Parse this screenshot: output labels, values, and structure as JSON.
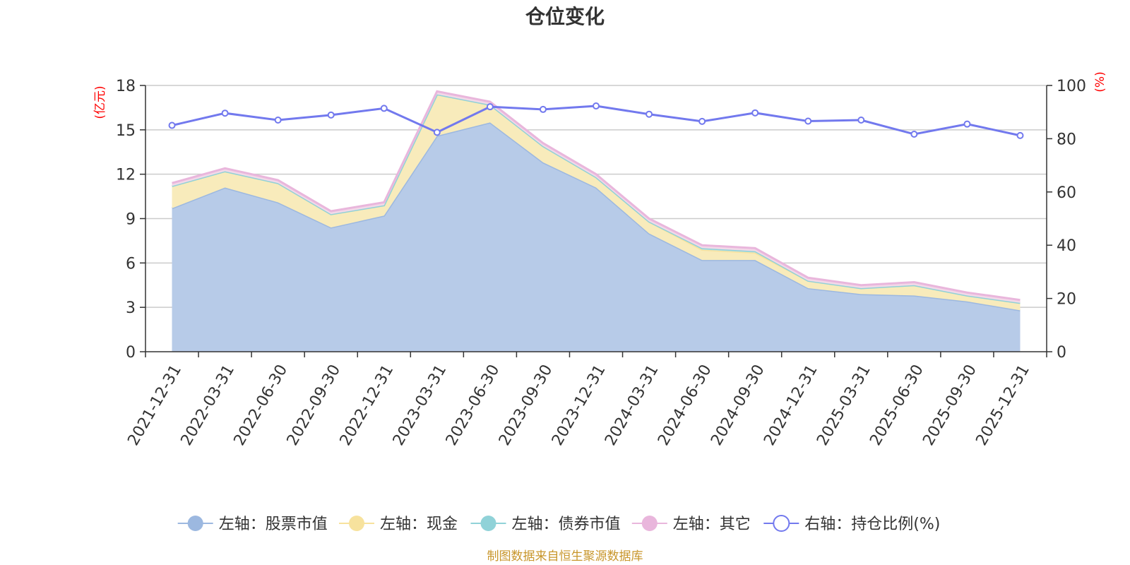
{
  "chart_data": {
    "type": "area",
    "title": "仓位变化",
    "categories": [
      "2021-12-31",
      "2022-03-31",
      "2022-06-30",
      "2022-09-30",
      "2022-12-31",
      "2023-03-31",
      "2023-06-30",
      "2023-09-30",
      "2023-12-31",
      "2024-03-31",
      "2024-06-30",
      "2024-09-30",
      "2024-12-31",
      "2025-03-31",
      "2025-06-30",
      "2025-09-30",
      "2025-12-31"
    ],
    "left_axis": {
      "unit": "(亿元)",
      "min": 0,
      "max": 18,
      "ticks": [
        0,
        3,
        6,
        9,
        12,
        15,
        18
      ]
    },
    "right_axis": {
      "unit": "(%)",
      "min": 0,
      "max": 100,
      "ticks": [
        0,
        20,
        40,
        60,
        80,
        100
      ]
    },
    "series": [
      {
        "name": "左轴：股票市值",
        "axis": "left",
        "stack": true,
        "color": "#9cb8e0",
        "fill": "#b7cbe8",
        "values": [
          9.7,
          11.1,
          10.1,
          8.4,
          9.2,
          14.6,
          15.5,
          12.8,
          11.1,
          8.0,
          6.2,
          6.2,
          4.3,
          3.9,
          3.8,
          3.4,
          2.8
        ]
      },
      {
        "name": "左轴：现金",
        "axis": "left",
        "stack": true,
        "color": "#f7e29d",
        "fill": "#f8ebbb",
        "values": [
          1.5,
          1.1,
          1.3,
          0.9,
          0.7,
          2.8,
          1.2,
          1.1,
          0.7,
          0.8,
          0.7,
          0.5,
          0.5,
          0.4,
          0.7,
          0.4,
          0.5
        ]
      },
      {
        "name": "左轴：债券市值",
        "axis": "left",
        "stack": true,
        "color": "#90d2d8",
        "fill": "#bfe3e6",
        "values": [
          0,
          0,
          0,
          0,
          0,
          0,
          0,
          0,
          0,
          0,
          0.1,
          0.1,
          0,
          0,
          0,
          0,
          0
        ]
      },
      {
        "name": "左轴：其它",
        "axis": "left",
        "stack": true,
        "color": "#e9b6dc",
        "fill": "#f2d8e8",
        "values": [
          0.2,
          0.2,
          0.2,
          0.2,
          0.2,
          0.2,
          0.2,
          0.2,
          0.2,
          0.2,
          0.2,
          0.2,
          0.2,
          0.2,
          0.2,
          0.2,
          0.2
        ]
      },
      {
        "name": "右轴：持仓比例(%)",
        "axis": "right",
        "stack": false,
        "color": "#7279ee",
        "values": [
          85,
          89.6,
          87,
          88.9,
          91.4,
          82.4,
          92,
          91,
          92.3,
          89.2,
          86.5,
          89.7,
          86.6,
          87,
          81.7,
          85.5,
          81.2
        ]
      }
    ],
    "legend_position": "bottom",
    "grid": true
  },
  "footer": {
    "source": "制图数据来自恒生聚源数据库"
  }
}
